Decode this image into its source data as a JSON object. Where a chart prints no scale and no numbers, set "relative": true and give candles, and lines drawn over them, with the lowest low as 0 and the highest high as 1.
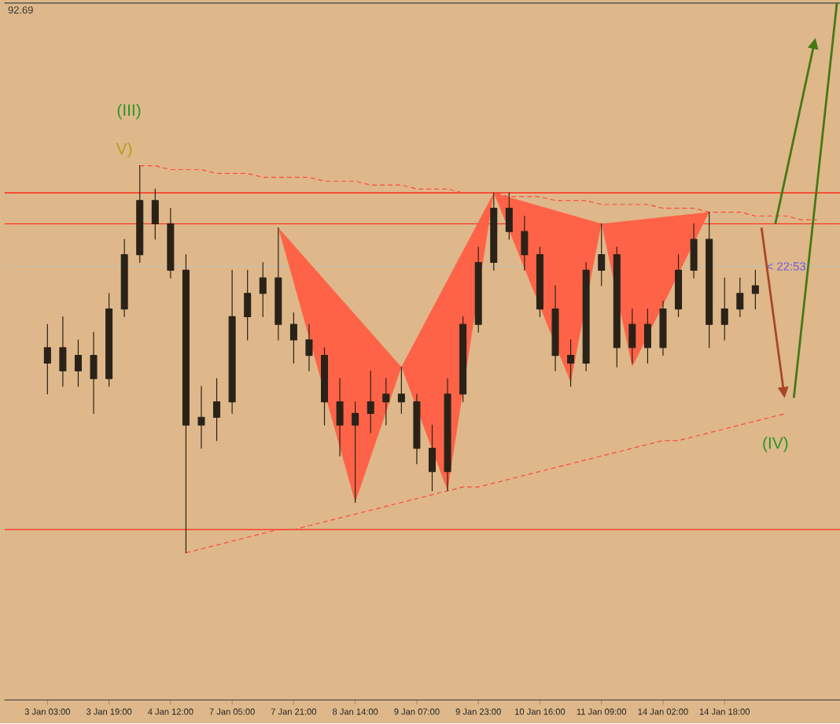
{
  "chart_data": {
    "type": "candlestick",
    "relative": true,
    "categories": [
      "3 Jan 03:00",
      null,
      null,
      null,
      "3 Jan 19:00",
      null,
      null,
      null,
      "4 Jan 12:00",
      null,
      null,
      null,
      "7 Jan 05:00",
      null,
      null,
      null,
      "7 Jan 21:00",
      null,
      null,
      null,
      "8 Jan 14:00",
      null,
      null,
      null,
      "9 Jan 07:00",
      null,
      null,
      null,
      "9 Jan 23:00",
      null,
      null,
      null,
      "10 Jan 16:00",
      null,
      null,
      null,
      "11 Jan 09:00",
      null,
      null,
      null,
      "14 Jan 02:00",
      null,
      null,
      null,
      "14 Jan 18:00",
      null,
      null,
      null,
      null,
      null,
      null,
      null
    ],
    "series": [
      {
        "color": "#2a2218",
        "ohlc": [
          [
            0.49,
            0.59,
            0.41,
            0.53
          ],
          [
            0.53,
            0.61,
            0.43,
            0.47
          ],
          [
            0.47,
            0.55,
            0.43,
            0.51
          ],
          [
            0.51,
            0.57,
            0.36,
            0.45
          ],
          [
            0.45,
            0.67,
            0.43,
            0.63
          ],
          [
            0.63,
            0.81,
            0.61,
            0.77
          ],
          [
            0.77,
            1.0,
            0.75,
            0.91
          ],
          [
            0.91,
            0.94,
            0.81,
            0.85
          ],
          [
            0.85,
            0.89,
            0.71,
            0.73
          ],
          [
            0.73,
            0.77,
            0.0,
            0.33
          ],
          [
            0.33,
            0.43,
            0.27,
            0.35
          ],
          [
            0.35,
            0.45,
            0.29,
            0.39
          ],
          [
            0.39,
            0.73,
            0.36,
            0.61
          ],
          [
            0.61,
            0.73,
            0.55,
            0.67
          ],
          [
            0.67,
            0.75,
            0.61,
            0.71
          ],
          [
            0.71,
            0.84,
            0.55,
            0.59
          ],
          [
            0.59,
            0.62,
            0.49,
            0.55
          ],
          [
            0.55,
            0.59,
            0.47,
            0.51
          ],
          [
            0.51,
            0.53,
            0.33,
            0.39
          ],
          [
            0.39,
            0.45,
            0.25,
            0.33
          ],
          [
            0.33,
            0.39,
            0.13,
            0.36
          ],
          [
            0.36,
            0.47,
            0.31,
            0.39
          ],
          [
            0.39,
            0.45,
            0.33,
            0.41
          ],
          [
            0.41,
            0.48,
            0.36,
            0.39
          ],
          [
            0.39,
            0.41,
            0.23,
            0.27
          ],
          [
            0.27,
            0.33,
            0.16,
            0.21
          ],
          [
            0.21,
            0.45,
            0.16,
            0.41
          ],
          [
            0.41,
            0.61,
            0.39,
            0.59
          ],
          [
            0.59,
            0.79,
            0.57,
            0.75
          ],
          [
            0.75,
            0.93,
            0.73,
            0.89
          ],
          [
            0.89,
            0.93,
            0.81,
            0.83
          ],
          [
            0.83,
            0.87,
            0.73,
            0.77
          ],
          [
            0.77,
            0.79,
            0.61,
            0.63
          ],
          [
            0.63,
            0.69,
            0.47,
            0.51
          ],
          [
            0.51,
            0.55,
            0.43,
            0.49
          ],
          [
            0.49,
            0.75,
            0.47,
            0.73
          ],
          [
            0.73,
            0.85,
            0.69,
            0.77
          ],
          [
            0.77,
            0.79,
            0.48,
            0.53
          ],
          [
            0.53,
            0.63,
            0.49,
            0.59
          ],
          [
            0.59,
            0.63,
            0.49,
            0.53
          ],
          [
            0.53,
            0.65,
            0.51,
            0.63
          ],
          [
            0.63,
            0.77,
            0.61,
            0.73
          ],
          [
            0.73,
            0.85,
            0.71,
            0.81
          ],
          [
            0.81,
            0.88,
            0.53,
            0.59
          ],
          [
            0.59,
            0.71,
            0.55,
            0.63
          ],
          [
            0.63,
            0.71,
            0.61,
            0.67
          ],
          [
            0.67,
            0.73,
            0.63,
            0.69
          ],
          null,
          null,
          null,
          null,
          null
        ]
      },
      {
        "type": "area",
        "color": "#ff6347",
        "values": [
          null,
          null,
          null,
          null,
          null,
          null,
          null,
          null,
          null,
          null,
          null,
          null,
          null,
          null,
          null,
          0.84,
          null,
          null,
          null,
          null,
          0.13,
          null,
          null,
          0.48,
          null,
          null,
          0.16,
          null,
          null,
          0.93,
          null,
          null,
          null,
          null,
          null,
          null,
          null,
          null,
          null,
          null,
          null,
          null,
          null,
          null,
          null,
          null,
          null,
          null,
          null,
          null,
          null,
          null
        ]
      },
      {
        "type": "area",
        "color": "#ff6347",
        "values": [
          null,
          null,
          null,
          null,
          null,
          null,
          null,
          null,
          null,
          null,
          null,
          null,
          null,
          null,
          null,
          null,
          null,
          null,
          null,
          null,
          null,
          null,
          null,
          null,
          null,
          null,
          null,
          null,
          null,
          0.93,
          null,
          null,
          null,
          null,
          0.44,
          null,
          0.85,
          null,
          0.48,
          null,
          null,
          null,
          null,
          0.88,
          null,
          null,
          null,
          null,
          null,
          null,
          null,
          null
        ]
      },
      {
        "type": "line",
        "line_style": "dashed",
        "color": "#ff4a3a",
        "values": [
          null,
          null,
          null,
          null,
          null,
          null,
          1.0,
          1.0,
          0.99,
          0.99,
          0.99,
          0.98,
          0.98,
          0.98,
          0.97,
          0.97,
          0.97,
          0.97,
          0.96,
          0.96,
          0.96,
          0.95,
          0.95,
          0.95,
          0.94,
          0.94,
          0.94,
          0.93,
          0.93,
          0.93,
          0.92,
          0.92,
          0.92,
          0.91,
          0.91,
          0.91,
          0.9,
          0.9,
          0.9,
          0.9,
          0.89,
          0.89,
          0.89,
          0.88,
          0.88,
          0.88,
          0.87,
          0.87,
          0.87,
          0.86,
          0.86,
          null
        ]
      },
      {
        "type": "line",
        "line_style": "dashed",
        "color": "#ff4a3a",
        "values": [
          null,
          null,
          null,
          null,
          null,
          null,
          null,
          null,
          null,
          0.0,
          0.01,
          0.02,
          0.03,
          0.04,
          0.05,
          0.06,
          0.06,
          0.07,
          0.08,
          0.09,
          0.1,
          0.11,
          0.12,
          0.13,
          0.14,
          0.15,
          0.16,
          0.17,
          0.17,
          0.18,
          0.19,
          0.2,
          0.21,
          0.22,
          0.23,
          0.24,
          0.25,
          0.26,
          0.27,
          0.28,
          0.29,
          0.29,
          0.3,
          0.31,
          0.32,
          0.33,
          0.34,
          0.35,
          0.36,
          null,
          null,
          null
        ]
      }
    ],
    "ref_lines": [
      {
        "axis": "y",
        "value": 0.93,
        "color": "#ff2a1a"
      },
      {
        "axis": "y",
        "value": 0.85,
        "color": "#ff2a1a"
      },
      {
        "axis": "y",
        "value": 0.06,
        "color": "#ff2a1a"
      },
      {
        "axis": "y",
        "value": 0.74,
        "color": "#c8c0b0"
      }
    ],
    "annotations": [
      "92.69",
      "(III)",
      "V)",
      "(IV)",
      "< 22:53"
    ]
  }
}
